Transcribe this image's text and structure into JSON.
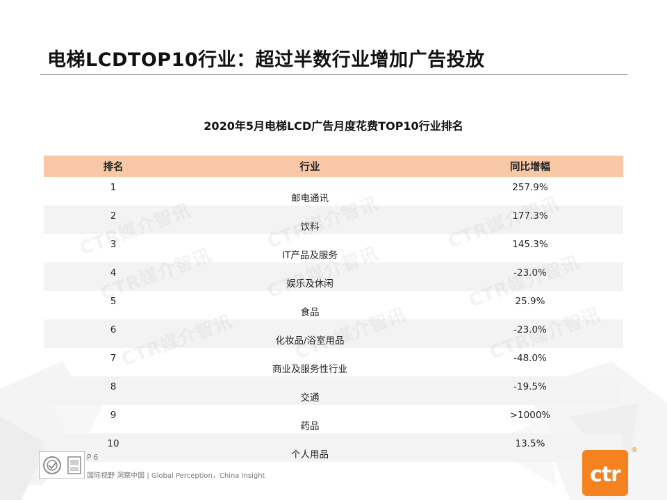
{
  "slide": {
    "title": "电梯LCDTOP10行业：超过半数行业增加广告投放"
  },
  "table": {
    "caption": "2020年5月电梯LCD广告月度花费TOP10行业排名",
    "headers": [
      "排名",
      "行业",
      "同比增幅"
    ],
    "rows": [
      {
        "rank": "1",
        "industry": "邮电通讯",
        "change": "257.9%"
      },
      {
        "rank": "2",
        "industry": "饮料",
        "change": "177.3%"
      },
      {
        "rank": "3",
        "industry": "IT产品及服务",
        "change": "145.3%"
      },
      {
        "rank": "4",
        "industry": "娱乐及休闲",
        "change": "-23.0%"
      },
      {
        "rank": "5",
        "industry": "食品",
        "change": "25.9%"
      },
      {
        "rank": "6",
        "industry": "化妆品/浴室用品",
        "change": "-23.0%"
      },
      {
        "rank": "7",
        "industry": "商业及服务性行业",
        "change": "-48.0%"
      },
      {
        "rank": "8",
        "industry": "交通",
        "change": "-19.5%"
      },
      {
        "rank": "9",
        "industry": "药品",
        "change": ">1000%"
      },
      {
        "rank": "10",
        "industry": "个人用品",
        "change": "13.5%"
      }
    ],
    "header_color": "#f9c9a7",
    "stripe_color": "#f3f3f3"
  },
  "watermark": {
    "text": "CTR媒介智讯"
  },
  "footer": {
    "page": "P 6",
    "slogan": "国际视野  洞察中国 |  Global Perception，China Insight",
    "logo_text": "ctr",
    "logo_mark": "®",
    "brand_color": "#f5821f"
  }
}
